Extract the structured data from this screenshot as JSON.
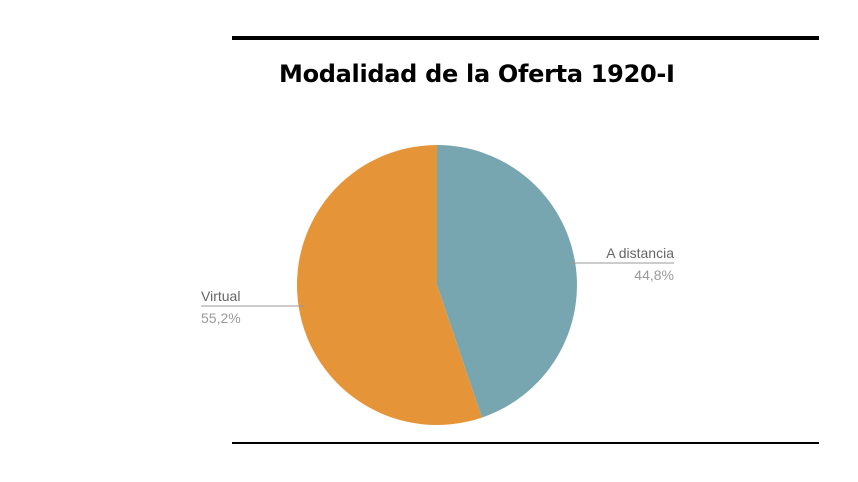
{
  "chart_data": {
    "type": "pie",
    "title": "Modalidad  de la Oferta 1920-I",
    "slices": [
      {
        "label": "A distancia",
        "value": 44.8,
        "value_text": "44,8%",
        "color": "#78a6b0"
      },
      {
        "label": "Virtual",
        "value": 55.2,
        "value_text": "55,2%",
        "color": "#e69438"
      }
    ],
    "legend": "none",
    "labels": "outside-with-leader-lines"
  }
}
